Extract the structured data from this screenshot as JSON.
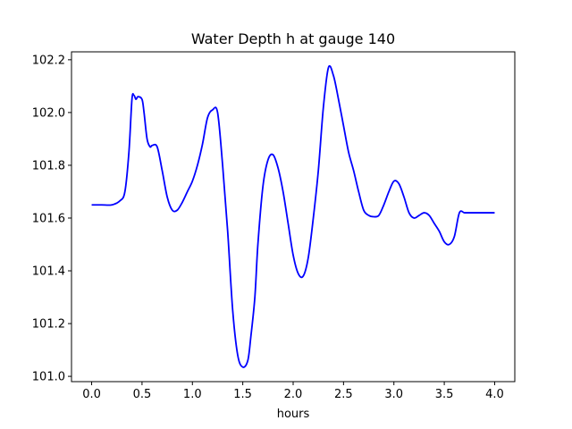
{
  "chart_data": {
    "type": "line",
    "title": "Water Depth h at gauge 140",
    "xlabel": "hours",
    "ylabel": "",
    "xlim": [
      -0.2,
      4.2
    ],
    "ylim": [
      100.98,
      102.23
    ],
    "xticks": [
      0.0,
      0.5,
      1.0,
      1.5,
      2.0,
      2.5,
      3.0,
      3.5,
      4.0
    ],
    "xtick_labels": [
      "0.0",
      "0.5",
      "1.0",
      "1.5",
      "2.0",
      "2.5",
      "3.0",
      "3.5",
      "4.0"
    ],
    "yticks": [
      101.0,
      101.2,
      101.4,
      101.6,
      101.8,
      102.0,
      102.2
    ],
    "ytick_labels": [
      "101.0",
      "101.2",
      "101.4",
      "101.6",
      "101.8",
      "102.0",
      "102.2"
    ],
    "grid": false,
    "series": [
      {
        "color": "#0000ff",
        "x": [
          0.0,
          0.1,
          0.2,
          0.28,
          0.33,
          0.37,
          0.4,
          0.42,
          0.44,
          0.46,
          0.5,
          0.52,
          0.55,
          0.58,
          0.6,
          0.65,
          0.7,
          0.75,
          0.8,
          0.85,
          0.9,
          0.95,
          1.0,
          1.05,
          1.1,
          1.15,
          1.2,
          1.25,
          1.3,
          1.35,
          1.4,
          1.45,
          1.5,
          1.55,
          1.58,
          1.62,
          1.65,
          1.7,
          1.75,
          1.8,
          1.85,
          1.9,
          1.95,
          2.0,
          2.05,
          2.1,
          2.15,
          2.2,
          2.25,
          2.3,
          2.35,
          2.4,
          2.45,
          2.5,
          2.55,
          2.6,
          2.65,
          2.7,
          2.75,
          2.8,
          2.85,
          2.9,
          2.95,
          3.0,
          3.05,
          3.1,
          3.15,
          3.2,
          3.25,
          3.3,
          3.35,
          3.4,
          3.45,
          3.5,
          3.55,
          3.6,
          3.65,
          3.7,
          3.75,
          3.8,
          3.85,
          3.9,
          3.95,
          4.0
        ],
        "y": [
          101.65,
          101.65,
          101.65,
          101.665,
          101.7,
          101.85,
          102.05,
          102.065,
          102.05,
          102.06,
          102.05,
          102.0,
          101.9,
          101.87,
          101.875,
          101.87,
          101.78,
          101.68,
          101.63,
          101.63,
          101.66,
          101.7,
          101.74,
          101.8,
          101.88,
          101.98,
          102.01,
          102.0,
          101.8,
          101.55,
          101.25,
          101.08,
          101.035,
          101.06,
          101.15,
          101.3,
          101.5,
          101.72,
          101.82,
          101.84,
          101.79,
          101.7,
          101.58,
          101.46,
          101.39,
          101.38,
          101.45,
          101.6,
          101.78,
          102.02,
          102.17,
          102.14,
          102.05,
          101.95,
          101.85,
          101.78,
          101.7,
          101.63,
          101.61,
          101.605,
          101.61,
          101.65,
          101.7,
          101.74,
          101.73,
          101.68,
          101.62,
          101.6,
          101.61,
          101.62,
          101.61,
          101.58,
          101.55,
          101.51,
          101.5,
          101.53,
          101.62,
          101.62,
          101.62,
          101.62,
          101.62,
          101.62,
          101.62,
          101.62
        ]
      }
    ]
  }
}
